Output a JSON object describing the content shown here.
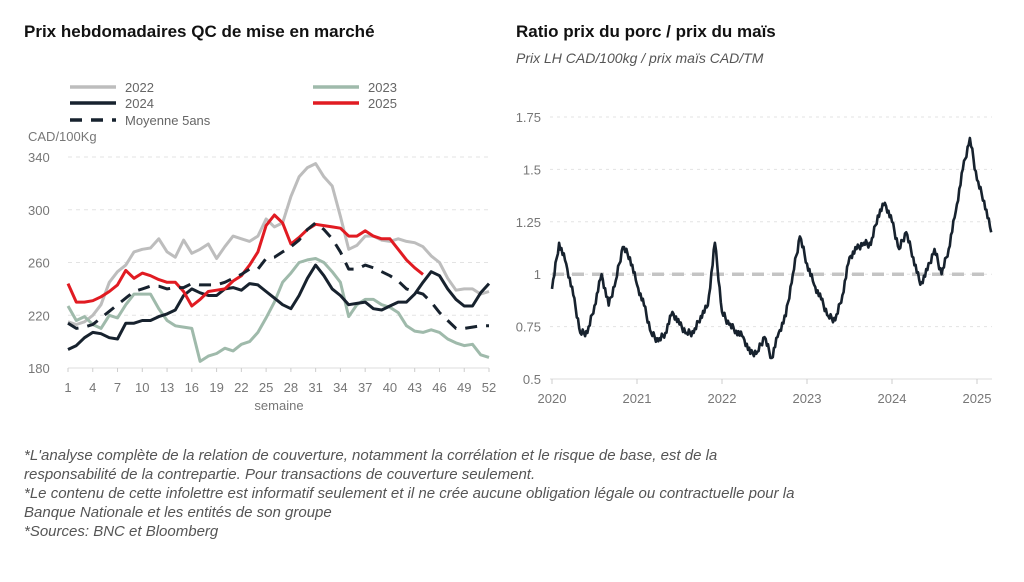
{
  "chart_data": [
    {
      "type": "line",
      "title": "Prix hebdomadaires QC de mise en marché",
      "ylabel": "CAD/100Kg",
      "xlabel": "semaine",
      "ylim": [
        180,
        340
      ],
      "yticks": [
        "340",
        "300",
        "260",
        "220",
        "180"
      ],
      "xticks": [
        "1",
        "4",
        "7",
        "10",
        "13",
        "16",
        "19",
        "22",
        "25",
        "28",
        "31",
        "34",
        "37",
        "40",
        "43",
        "46",
        "49",
        "52"
      ],
      "grid": true,
      "legend": "top",
      "series": [
        {
          "name": "2022",
          "color": "#bdbdbd",
          "dash": false,
          "values": [
            215,
            213,
            215,
            220,
            228,
            245,
            253,
            258,
            268,
            270,
            271,
            278,
            268,
            264,
            277,
            267,
            270,
            274,
            263,
            272,
            280,
            278,
            276,
            280,
            293,
            287,
            290,
            310,
            325,
            332,
            335,
            325,
            318,
            295,
            270,
            273,
            280,
            280,
            277,
            276,
            278,
            276,
            275,
            272,
            265,
            260,
            248,
            239,
            240,
            240,
            236,
            238
          ]
        },
        {
          "name": "2023",
          "color": "#9fbaab",
          "dash": false,
          "values": [
            227,
            216,
            219,
            213,
            210,
            220,
            218,
            228,
            236,
            236,
            236,
            225,
            216,
            212,
            211,
            210,
            185,
            189,
            191,
            195,
            193,
            198,
            200,
            207,
            218,
            230,
            245,
            252,
            260,
            262,
            263,
            260,
            253,
            245,
            219,
            228,
            232,
            232,
            228,
            226,
            222,
            212,
            208,
            207,
            209,
            207,
            202,
            199,
            197,
            198,
            190,
            188
          ]
        },
        {
          "name": "2024",
          "color": "#17222e",
          "dash": false,
          "values": [
            194,
            197,
            203,
            207,
            206,
            203,
            202,
            214,
            214,
            216,
            216,
            219,
            221,
            224,
            235,
            240,
            237,
            235,
            235,
            240,
            241,
            239,
            244,
            243,
            238,
            233,
            228,
            225,
            235,
            248,
            258,
            250,
            240,
            235,
            228,
            229,
            230,
            225,
            224,
            227,
            230,
            230,
            236,
            245,
            253,
            250,
            240,
            232,
            227,
            227,
            237,
            244
          ]
        },
        {
          "name": "2025",
          "color": "#e11b22",
          "dash": false,
          "values": [
            244,
            230,
            230,
            231,
            234,
            238,
            243,
            254,
            248,
            252,
            250,
            247,
            245,
            245,
            238,
            227,
            232,
            238,
            239,
            240,
            246,
            250,
            258,
            268,
            288,
            296,
            290,
            274,
            279,
            285,
            289,
            288,
            287,
            286,
            280,
            280,
            284,
            280,
            278,
            278,
            270,
            262,
            256,
            251
          ]
        },
        {
          "name": "Moyenne 5ans",
          "color": "#17222e",
          "dash": true,
          "values": [
            214,
            210,
            211,
            213,
            218,
            223,
            228,
            233,
            238,
            240,
            242,
            242,
            240,
            241,
            241,
            244,
            243,
            243,
            243,
            245,
            248,
            251,
            255,
            255,
            263,
            264,
            268,
            272,
            277,
            285,
            290,
            285,
            278,
            268,
            255,
            255,
            258,
            256,
            253,
            250,
            246,
            240,
            238,
            236,
            230,
            222,
            216,
            210,
            210,
            211,
            212,
            212
          ]
        }
      ]
    },
    {
      "type": "line",
      "title": "Ratio prix du porc / prix du maïs",
      "subtitle": "Prix LH CAD/100kg / prix maïs CAD/TM",
      "ylim": [
        0.5,
        1.75
      ],
      "yticks": [
        "1.75",
        "1.5",
        "1.25",
        "1",
        "0.75",
        "0.5"
      ],
      "xticks": [
        "2020",
        "2021",
        "2022",
        "2023",
        "2024",
        "2025"
      ],
      "grid": true,
      "reference_line": {
        "value": 1,
        "color": "#c4c4c4"
      },
      "series": [
        {
          "color": "#17222e",
          "x": [
            "2020-01",
            "2020-02",
            "2020-03",
            "2020-04",
            "2020-05",
            "2020-06",
            "2020-07",
            "2020-08",
            "2020-09",
            "2020-10",
            "2020-11",
            "2020-12",
            "2021-01",
            "2021-02",
            "2021-03",
            "2021-04",
            "2021-05",
            "2021-06",
            "2021-07",
            "2021-08",
            "2021-09",
            "2021-10",
            "2021-11",
            "2021-12",
            "2022-01",
            "2022-02",
            "2022-03",
            "2022-04",
            "2022-05",
            "2022-06",
            "2022-07",
            "2022-08",
            "2022-09",
            "2022-10",
            "2022-11",
            "2022-12",
            "2023-01",
            "2023-02",
            "2023-03",
            "2023-04",
            "2023-05",
            "2023-06",
            "2023-07",
            "2023-08",
            "2023-09",
            "2023-10",
            "2023-11",
            "2023-12",
            "2024-01",
            "2024-02",
            "2024-03",
            "2024-04",
            "2024-05",
            "2024-06",
            "2024-07",
            "2024-08",
            "2024-09",
            "2024-10",
            "2024-11",
            "2024-12",
            "2025-01",
            "2025-02",
            "2025-03"
          ],
          "values": [
            0.93,
            1.15,
            1.05,
            0.9,
            0.72,
            0.72,
            0.85,
            1.0,
            0.85,
            0.97,
            1.13,
            1.08,
            0.95,
            0.85,
            0.72,
            0.68,
            0.72,
            0.82,
            0.76,
            0.72,
            0.72,
            0.8,
            0.85,
            1.15,
            0.82,
            0.76,
            0.73,
            0.7,
            0.62,
            0.63,
            0.7,
            0.6,
            0.72,
            0.8,
            1.0,
            1.18,
            1.05,
            0.95,
            0.88,
            0.8,
            0.78,
            0.9,
            1.08,
            1.12,
            1.15,
            1.14,
            1.28,
            1.34,
            1.25,
            1.12,
            1.2,
            1.08,
            0.95,
            1.02,
            1.12,
            1.0,
            1.12,
            1.3,
            1.5,
            1.65,
            1.45,
            1.35,
            1.2
          ]
        }
      ]
    }
  ],
  "footnotes": [
    "*L'analyse complète de la relation de couverture, notamment la corrélation et le risque de base, est de la",
    "responsabilité de la contrepartie. Pour transactions de couverture seulement.",
    "*Le contenu de cette infolettre est informatif seulement et il ne crée aucune obligation légale ou contractuelle pour la",
    "Banque Nationale et les entités de son groupe",
    "*Sources: BNC et Bloomberg"
  ]
}
